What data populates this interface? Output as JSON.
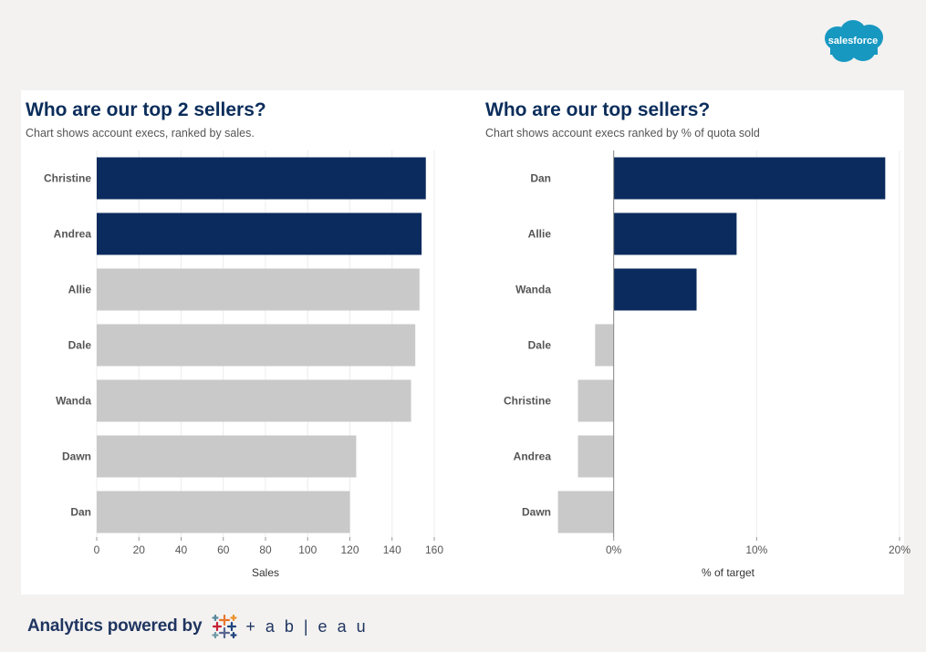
{
  "brand": {
    "logo_text": "salesforce",
    "cloud_color": "#1798c1"
  },
  "footer": {
    "text": "Analytics powered by",
    "tableau_word": "+ a b | e a u"
  },
  "colors": {
    "highlight": "#0b2b5e",
    "muted": "#c8c9c8",
    "grid": "#ececec",
    "zero_line": "#888888"
  },
  "chart_data": [
    {
      "type": "bar",
      "orientation": "horizontal",
      "title": "Who are our top 2 sellers?",
      "subtitle": "Chart shows account execs, ranked by sales.",
      "xlabel": "Sales",
      "categories": [
        "Christine",
        "Andrea",
        "Allie",
        "Dale",
        "Wanda",
        "Dawn",
        "Dan"
      ],
      "values": [
        156,
        154,
        153,
        151,
        149,
        123,
        120
      ],
      "highlighted": [
        true,
        true,
        false,
        false,
        false,
        false,
        false
      ],
      "xlim": [
        0,
        160
      ],
      "ticks": [
        0,
        20,
        40,
        60,
        80,
        100,
        120,
        140,
        160
      ],
      "tick_labels": [
        "0",
        "20",
        "40",
        "60",
        "80",
        "100",
        "120",
        "140",
        "160"
      ],
      "grid": true
    },
    {
      "type": "bar",
      "orientation": "horizontal",
      "title": "Who are our top sellers?",
      "subtitle": "Chart shows account execs ranked by % of quota sold",
      "xlabel": "% of target",
      "categories": [
        "Dan",
        "Allie",
        "Wanda",
        "Dale",
        "Christine",
        "Andrea",
        "Dawn"
      ],
      "values": [
        0.19,
        0.086,
        0.058,
        -0.013,
        -0.025,
        -0.025,
        -0.039
      ],
      "highlighted": [
        true,
        true,
        true,
        false,
        false,
        false,
        false
      ],
      "xlim": [
        -0.04,
        0.2
      ],
      "ticks": [
        0,
        0.1,
        0.2
      ],
      "tick_labels": [
        "0%",
        "10%",
        "20%"
      ],
      "grid": true
    }
  ]
}
